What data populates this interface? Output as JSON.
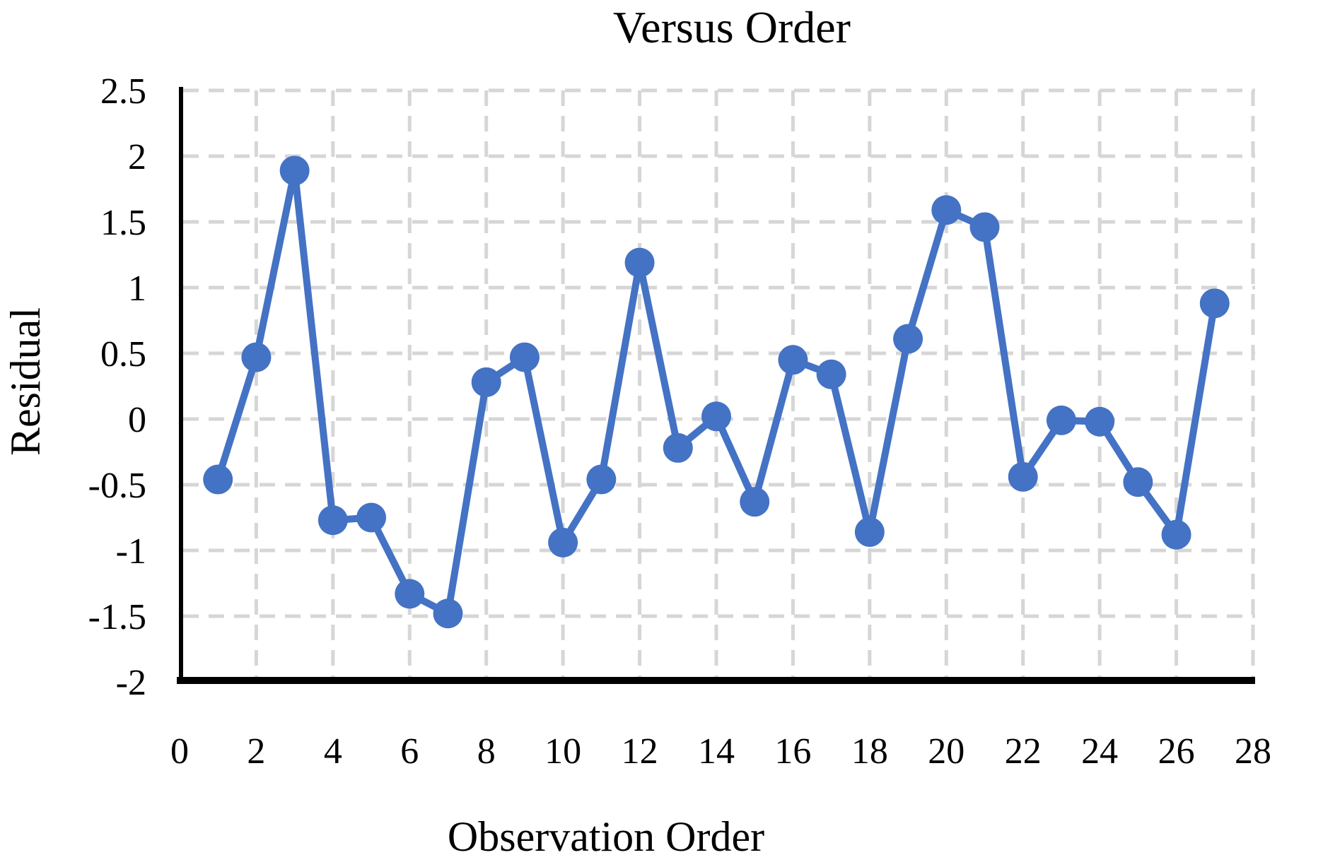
{
  "chart_data": {
    "type": "line",
    "title": "Versus Order",
    "xlabel": "Observation Order",
    "ylabel": "Residual",
    "series": [
      {
        "name": "Residual",
        "x": [
          1,
          2,
          3,
          4,
          5,
          6,
          7,
          8,
          9,
          10,
          11,
          12,
          13,
          14,
          15,
          16,
          17,
          18,
          19,
          20,
          21,
          22,
          23,
          24,
          25,
          26,
          27
        ],
        "values": [
          -0.46,
          0.47,
          1.89,
          -0.77,
          -0.75,
          -1.33,
          -1.48,
          0.28,
          0.47,
          -0.94,
          -0.46,
          1.19,
          -0.22,
          0.02,
          -0.63,
          0.45,
          0.34,
          -0.86,
          0.61,
          1.59,
          1.46,
          -0.44,
          -0.01,
          -0.02,
          -0.48,
          -0.88,
          0.88
        ]
      }
    ],
    "xlim": [
      0,
      28
    ],
    "ylim": [
      -2,
      2.5
    ],
    "x_tick_values": [
      0,
      2,
      4,
      6,
      8,
      10,
      12,
      14,
      16,
      18,
      20,
      22,
      24,
      26,
      28
    ],
    "x_tick_labels": [
      "0",
      "2",
      "4",
      "6",
      "8",
      "10",
      "12",
      "14",
      "16",
      "18",
      "20",
      "22",
      "24",
      "26",
      "28"
    ],
    "y_tick_values": [
      2.5,
      2,
      1.5,
      1,
      0.5,
      0,
      -0.5,
      -1,
      -1.5,
      -2
    ],
    "y_tick_labels": [
      "2.5",
      "2",
      "1.5",
      "1",
      "0.5",
      "0",
      "-0.5",
      "-1",
      "-1.5",
      "-2"
    ],
    "grid": "dashed",
    "legend": "none",
    "marker": "circle",
    "colors": {
      "series": "#4472C4",
      "grid": "#D6D6D6",
      "axis": "#000000",
      "text": "#000000",
      "background": "#FFFFFF"
    }
  }
}
